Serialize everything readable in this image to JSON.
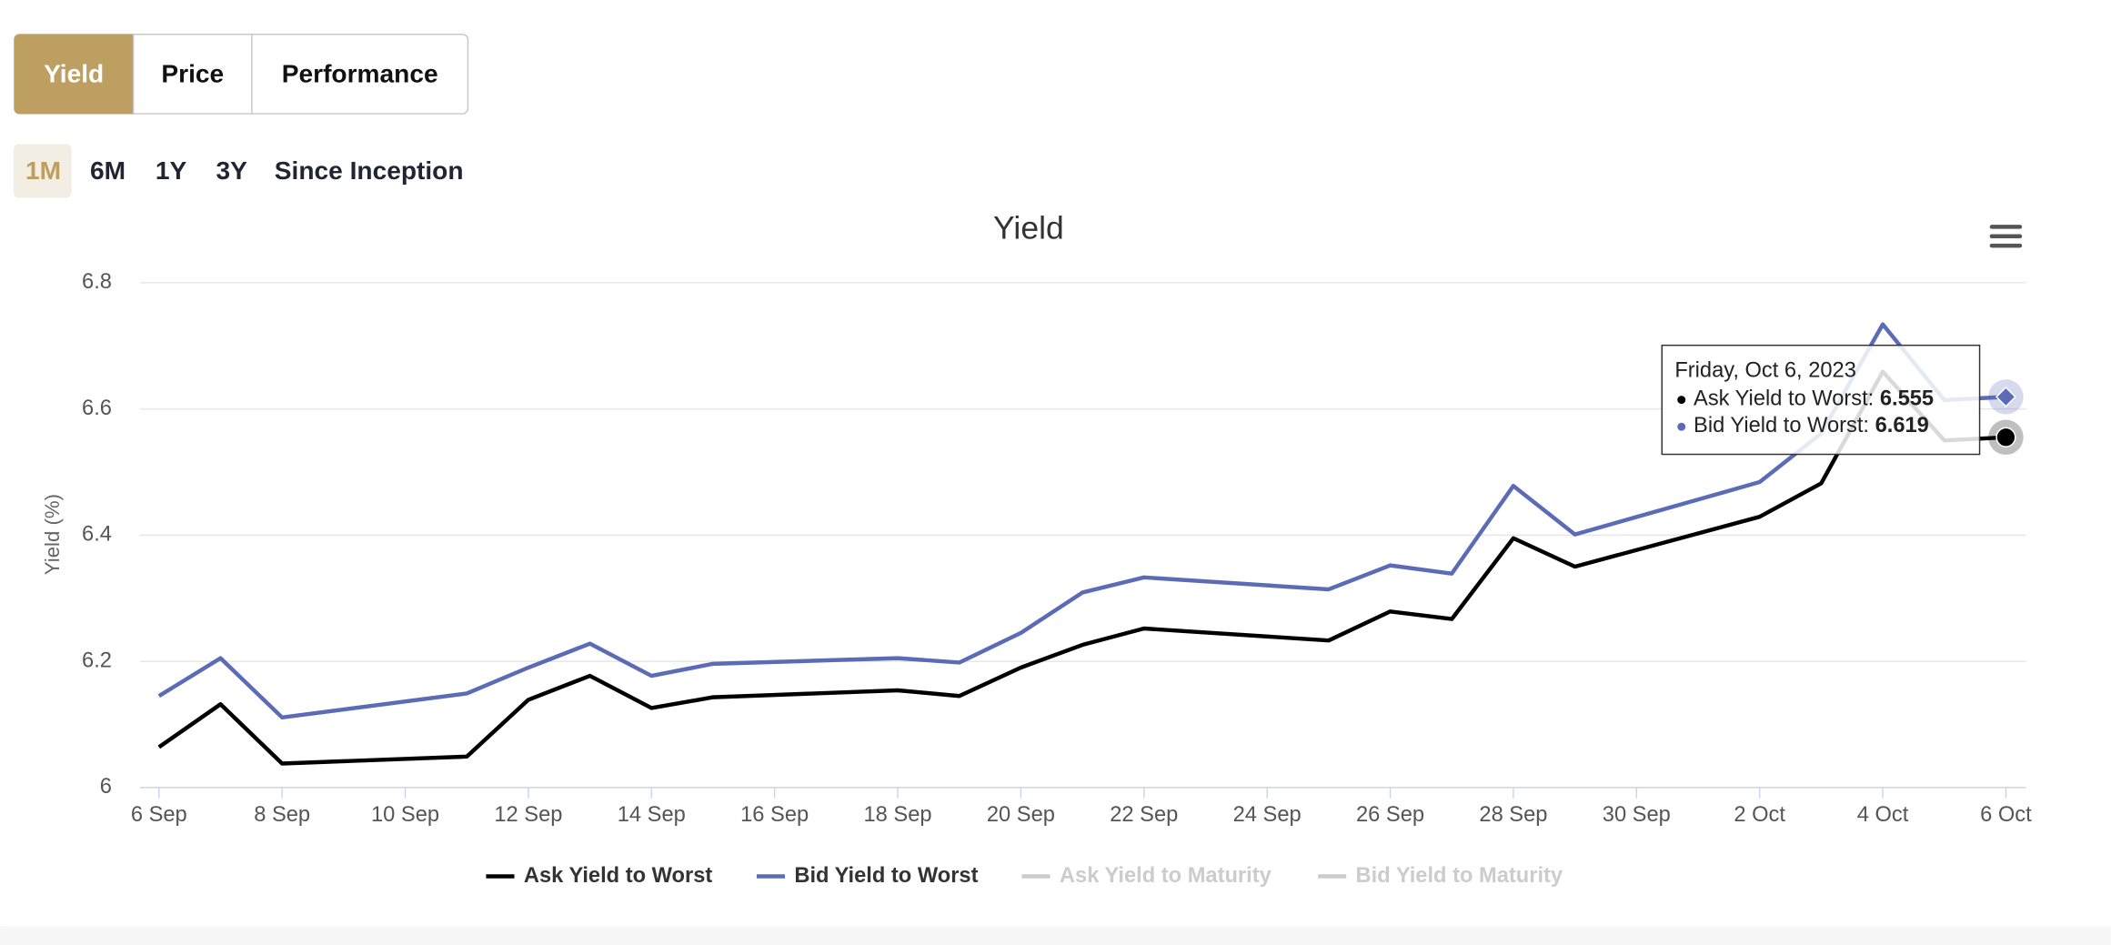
{
  "tabs": [
    "Yield",
    "Price",
    "Performance"
  ],
  "ranges": [
    "1M",
    "6M",
    "1Y",
    "3Y",
    "Since Inception"
  ],
  "tooltip": {
    "title": "Friday, Oct 6, 2023",
    "rows": [
      {
        "label": "Ask Yield to Worst:",
        "series": 0,
        "index": 22
      },
      {
        "label": "Bid Yield to Worst:",
        "series": 1,
        "index": 22
      }
    ]
  },
  "chart_data": {
    "type": "line",
    "title": "Yield",
    "y_label": "Yield (%)",
    "x": [
      "6 Sep",
      "7 Sep",
      "8 Sep",
      "11 Sep",
      "12 Sep",
      "13 Sep",
      "14 Sep",
      "15 Sep",
      "18 Sep",
      "19 Sep",
      "20 Sep",
      "21 Sep",
      "22 Sep",
      "25 Sep",
      "26 Sep",
      "27 Sep",
      "28 Sep",
      "29 Sep",
      "2 Oct",
      "3 Oct",
      "4 Oct",
      "5 Oct",
      "6 Oct"
    ],
    "xlim": [
      "6 Sep",
      "6 Oct"
    ],
    "xticks": [
      "6 Sep",
      "8 Sep",
      "10 Sep",
      "12 Sep",
      "14 Sep",
      "16 Sep",
      "18 Sep",
      "20 Sep",
      "22 Sep",
      "24 Sep",
      "26 Sep",
      "28 Sep",
      "30 Sep",
      "2 Oct",
      "4 Oct",
      "6 Oct"
    ],
    "ylim": [
      6,
      6.8
    ],
    "yticks": [
      6,
      6.2,
      6.4,
      6.6,
      6.8
    ],
    "grid": true,
    "legend": "bottom",
    "series": [
      {
        "name": "Ask Yield to Worst",
        "color": "#000000",
        "visible": true,
        "values": [
          6.064,
          6.132,
          6.038,
          6.049,
          6.139,
          6.177,
          6.126,
          6.143,
          6.154,
          6.145,
          6.19,
          6.226,
          6.252,
          6.233,
          6.279,
          6.267,
          6.395,
          6.35,
          6.429,
          6.482,
          6.659,
          6.55,
          6.555
        ]
      },
      {
        "name": "Bid Yield to Worst",
        "color": "#5b6bb5",
        "visible": true,
        "values": [
          6.145,
          6.205,
          6.111,
          6.149,
          6.19,
          6.228,
          6.177,
          6.196,
          6.205,
          6.198,
          6.245,
          6.309,
          6.333,
          6.314,
          6.352,
          6.339,
          6.478,
          6.401,
          6.484,
          6.561,
          6.734,
          6.614,
          6.619
        ]
      },
      {
        "name": "Ask Yield to Maturity",
        "visible": false,
        "values": [
          null,
          null,
          null,
          null,
          null,
          null,
          null,
          null,
          null,
          null,
          null,
          null,
          null,
          null,
          null,
          null,
          null,
          null,
          null,
          null,
          null,
          null,
          null
        ]
      },
      {
        "name": "Bid Yield to Maturity",
        "visible": false,
        "values": [
          null,
          null,
          null,
          null,
          null,
          null,
          null,
          null,
          null,
          null,
          null,
          null,
          null,
          null,
          null,
          null,
          null,
          null,
          null,
          null,
          null,
          null,
          null
        ]
      }
    ]
  }
}
